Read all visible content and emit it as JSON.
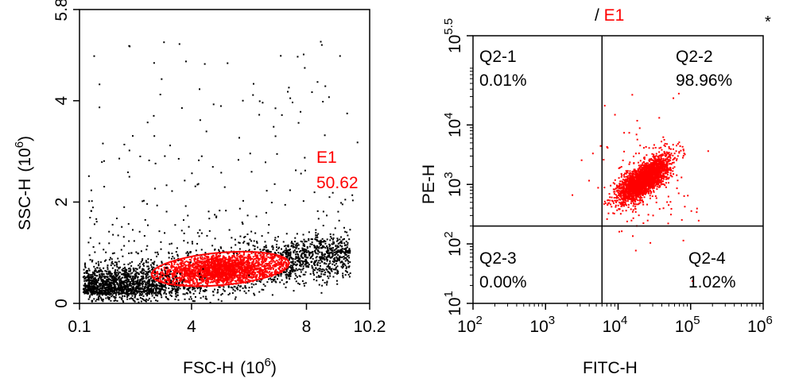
{
  "colors": {
    "gate": "#ff0000",
    "events": "#000000",
    "axis": "#000000"
  },
  "chart_data": [
    {
      "type": "scatter",
      "title": "",
      "xlabel": "FSC-H",
      "xlabel_exp": "6",
      "ylabel": "SSC-H",
      "ylabel_exp": "6",
      "xlim": [
        0.1,
        10.2
      ],
      "ylim": [
        0,
        5.8
      ],
      "xticks": [
        "0.1",
        "4",
        "8",
        "10.2"
      ],
      "xtick_values": [
        0.1,
        4,
        8,
        10.2
      ],
      "yticks": [
        "0",
        "2",
        "4",
        "5.8"
      ],
      "ytick_values": [
        0,
        2,
        4,
        5.8
      ],
      "gate": {
        "name": "E1",
        "percent": "50.62",
        "center": [
          5.0,
          0.68
        ],
        "semi_axes": [
          2.4,
          0.32
        ],
        "rotation_deg": -5
      },
      "series": [
        {
          "color": "#000000",
          "description_points": "dense population 0.1-9.5 FSC, 0-1 SSC, sparse above"
        },
        {
          "color": "#ff0000",
          "gate": "E1"
        }
      ]
    },
    {
      "type": "scatter",
      "title_prefix": "/ ",
      "title_gate": "E1",
      "marker": "*",
      "xlabel": "FITC-H",
      "ylabel": "PE-H",
      "xscale": "log",
      "yscale": "log",
      "xlim": [
        100,
        1000000
      ],
      "ylim": [
        10,
        316228
      ],
      "xticks": [
        {
          "base": "10",
          "exp": "2"
        },
        {
          "base": "10",
          "exp": "3"
        },
        {
          "base": "10",
          "exp": "4"
        },
        {
          "base": "10",
          "exp": "5"
        },
        {
          "base": "10",
          "exp": "6"
        }
      ],
      "xtick_values": [
        100,
        1000,
        10000,
        100000,
        1000000
      ],
      "yticks": [
        {
          "base": "10",
          "exp": "1"
        },
        {
          "base": "10",
          "exp": "2"
        },
        {
          "base": "10",
          "exp": "3"
        },
        {
          "base": "10",
          "exp": "4"
        },
        {
          "base": "10",
          "exp": "5.5"
        }
      ],
      "ytick_values": [
        10,
        100,
        1000,
        10000,
        316228
      ],
      "quadrant_split": {
        "x": 6000,
        "y": 200
      },
      "quadrants": [
        {
          "name": "Q2-1",
          "percent": "0.01%",
          "position": "top-left"
        },
        {
          "name": "Q2-2",
          "percent": "98.96%",
          "position": "top-right"
        },
        {
          "name": "Q2-3",
          "percent": "0.00%",
          "position": "bottom-left"
        },
        {
          "name": "Q2-4",
          "percent": "1.02%",
          "position": "bottom-right"
        }
      ],
      "series": [
        {
          "color": "#ff0000",
          "center_log": [
            4.35,
            3.1
          ]
        }
      ]
    }
  ]
}
